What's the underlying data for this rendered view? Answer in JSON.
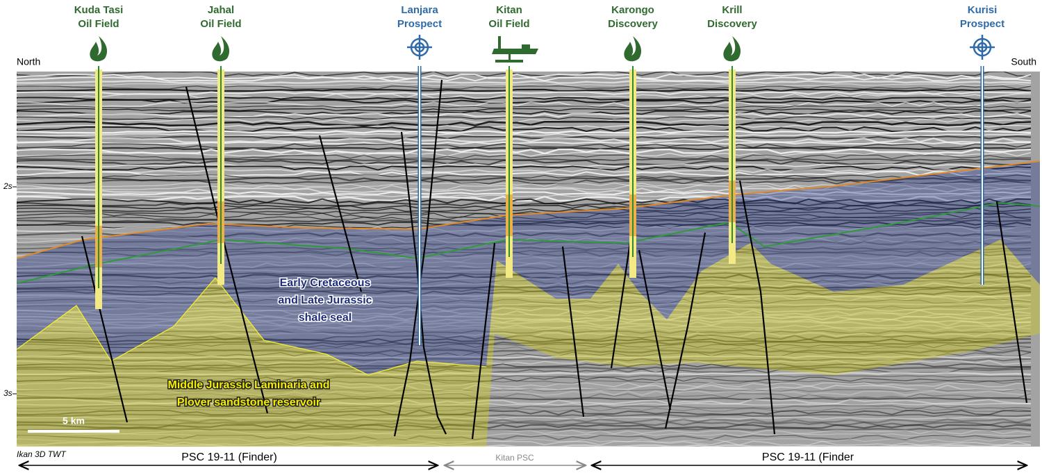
{
  "orientation": {
    "left": "North",
    "right": "South"
  },
  "wells": [
    {
      "name": "Kuda Tasi",
      "kind": "Oil Field"
    },
    {
      "name": "Jahal",
      "kind": "Oil Field"
    },
    {
      "name": "Lanjara",
      "kind": "Prospect"
    },
    {
      "name": "Kitan",
      "kind": "Oil Field"
    },
    {
      "name": "Karongo",
      "kind": "Discovery"
    },
    {
      "name": "Krill",
      "kind": "Discovery"
    },
    {
      "name": "Kurisi",
      "kind": "Prospect"
    }
  ],
  "time_ticks": [
    "2s",
    "3s"
  ],
  "units": {
    "seal": [
      "Early Cretaceous",
      "and Late Jurassic",
      "shale seal"
    ],
    "reservoir": [
      "Middle Jurassic Laminaria and",
      "Plover sandstone reservoir"
    ]
  },
  "scale_bar": "5 km",
  "survey": "Ikan 3D TWT",
  "licences": [
    "PSC 19-11 (Finder)",
    "Kitan PSC",
    "PSC 19-11 (Finder"
  ]
}
